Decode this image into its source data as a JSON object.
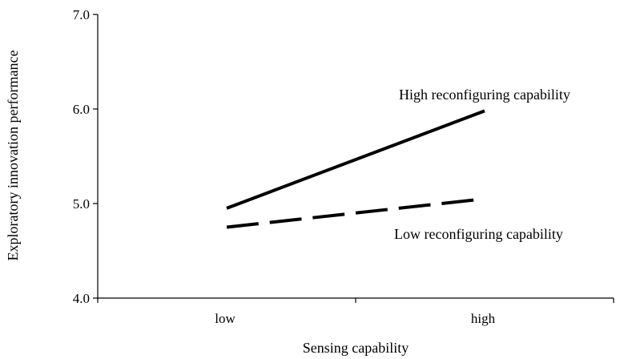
{
  "chart_data": {
    "type": "line",
    "title": "",
    "xlabel": "Sensing capability",
    "ylabel": "Exploratory innovation performance",
    "categories": [
      "low",
      "high"
    ],
    "ylim": [
      4.0,
      7.0
    ],
    "yticks": [
      "4.0",
      "5.0",
      "6.0",
      "7.0"
    ],
    "grid": false,
    "legend": "inline",
    "series": [
      {
        "name": "High reconfiguring capability",
        "values": [
          4.95,
          5.98
        ],
        "style": "solid",
        "color": "#000000"
      },
      {
        "name": "Low reconfiguring capability",
        "values": [
          4.75,
          5.05
        ],
        "style": "dashed",
        "color": "#000000"
      }
    ]
  }
}
